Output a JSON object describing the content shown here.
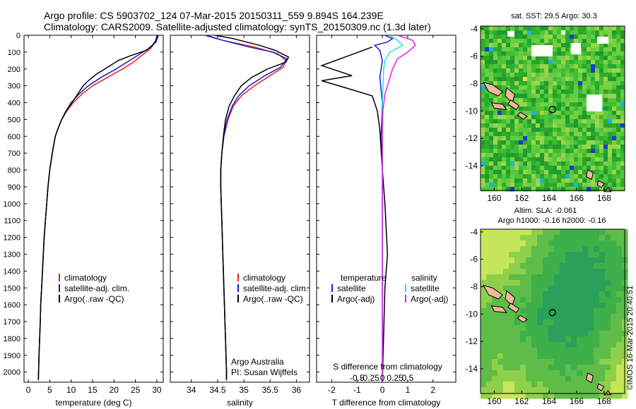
{
  "header": {
    "line1": "Argo profile: CS 5903702_124 07-Mar-2015 20150311_559 9.894S 164.239E",
    "line2": "Climatology: CARS2009. Satellite-adjusted climatology: synTS_20150309.nc (1.3d later)"
  },
  "credit": "©IMOS 16-Mar-2015 20:40:51",
  "colors": {
    "climatology": "#e8201e",
    "satellite": "#1a1acc",
    "argo": "#000000",
    "sat_salinity": "#22e0e8",
    "argo_adj_salinity": "#e020e0"
  },
  "chart_data": [
    {
      "id": "temperature-profile",
      "type": "line",
      "xlabel": "temperature (deg C)",
      "ylabel": "",
      "xlim": [
        -1,
        31.5
      ],
      "ylim": [
        2060,
        0
      ],
      "xticks": [
        0,
        5,
        10,
        15,
        20,
        25,
        30
      ],
      "yticks": [
        0,
        100,
        200,
        300,
        400,
        500,
        600,
        700,
        800,
        900,
        1000,
        1100,
        1200,
        1300,
        1400,
        1500,
        1600,
        1700,
        1800,
        1900,
        2000
      ],
      "legend": [
        "climatology",
        "satellite-adj. clim.",
        "Argo(..raw -QC)"
      ],
      "series": [
        {
          "name": "climatology",
          "color": "#e8201e",
          "points": [
            [
              30.2,
              0
            ],
            [
              29.6,
              40
            ],
            [
              28.5,
              80
            ],
            [
              26.5,
              120
            ],
            [
              24.5,
              160
            ],
            [
              22,
              200
            ],
            [
              18.5,
              250
            ],
            [
              15,
              300
            ],
            [
              12.5,
              350
            ],
            [
              10.5,
              400
            ],
            [
              9,
              450
            ],
            [
              7.8,
              500
            ],
            [
              7,
              550
            ],
            [
              6.3,
              600
            ],
            [
              5.6,
              700
            ],
            [
              5,
              800
            ],
            [
              4.6,
              900
            ],
            [
              4.3,
              1000
            ],
            [
              4,
              1100
            ],
            [
              3.7,
              1200
            ],
            [
              3.5,
              1300
            ],
            [
              3.3,
              1400
            ],
            [
              3.1,
              1500
            ],
            [
              2.9,
              1600
            ],
            [
              2.8,
              1700
            ],
            [
              2.65,
              1800
            ],
            [
              2.5,
              1900
            ],
            [
              2.4,
              2000
            ],
            [
              2.35,
              2050
            ]
          ]
        },
        {
          "name": "satellite-adj. clim.",
          "color": "#1a1acc",
          "points": [
            [
              30.4,
              0
            ],
            [
              29.8,
              40
            ],
            [
              28,
              80
            ],
            [
              25.5,
              120
            ],
            [
              23,
              160
            ],
            [
              20.5,
              200
            ],
            [
              17,
              250
            ],
            [
              14,
              300
            ],
            [
              11.8,
              350
            ],
            [
              10,
              400
            ],
            [
              8.8,
              450
            ],
            [
              7.8,
              500
            ],
            [
              7,
              550
            ],
            [
              6.3,
              600
            ],
            [
              5.6,
              700
            ],
            [
              5,
              800
            ],
            [
              4.6,
              900
            ],
            [
              4.3,
              1000
            ],
            [
              4,
              1100
            ],
            [
              3.7,
              1200
            ],
            [
              3.5,
              1300
            ],
            [
              3.3,
              1400
            ],
            [
              3.1,
              1500
            ],
            [
              2.9,
              1600
            ],
            [
              2.8,
              1700
            ],
            [
              2.65,
              1800
            ],
            [
              2.5,
              1900
            ],
            [
              2.4,
              2000
            ],
            [
              2.35,
              2050
            ]
          ]
        },
        {
          "name": "Argo(..raw -QC)",
          "color": "#000000",
          "points": [
            [
              30.1,
              0
            ],
            [
              29.8,
              30
            ],
            [
              29,
              60
            ],
            [
              27.5,
              90
            ],
            [
              24,
              120
            ],
            [
              21,
              150
            ],
            [
              18.5,
              190
            ],
            [
              16,
              230
            ],
            [
              14,
              270
            ],
            [
              12.8,
              300
            ],
            [
              11.5,
              350
            ],
            [
              10.2,
              400
            ],
            [
              8.8,
              450
            ],
            [
              7.8,
              500
            ],
            [
              7,
              550
            ],
            [
              6.3,
              600
            ],
            [
              5.6,
              700
            ],
            [
              5,
              800
            ],
            [
              4.6,
              900
            ],
            [
              4.3,
              1000
            ],
            [
              4,
              1100
            ],
            [
              3.7,
              1200
            ],
            [
              3.5,
              1300
            ],
            [
              3.3,
              1400
            ],
            [
              3.1,
              1500
            ],
            [
              2.9,
              1600
            ],
            [
              2.8,
              1700
            ],
            [
              2.65,
              1800
            ],
            [
              2.5,
              1900
            ],
            [
              2.4,
              2000
            ],
            [
              2.35,
              2040
            ]
          ]
        }
      ]
    },
    {
      "id": "salinity-profile",
      "type": "line",
      "xlabel": "salinity",
      "ylabel": "",
      "xlim": [
        33.6,
        36.25
      ],
      "ylim": [
        2060,
        0
      ],
      "xticks": [
        34,
        34.5,
        35,
        35.5,
        36
      ],
      "xtick_labels": [
        "34",
        "34.5",
        "35",
        "35.5",
        "36"
      ],
      "legend": [
        "climatology",
        "satellite-adj. clim.",
        "Argo(..raw -QC)"
      ],
      "annotation": [
        "Argo Australia",
        "PI: Susan Wijffels"
      ],
      "series": [
        {
          "name": "climatology",
          "color": "#e8201e",
          "points": [
            [
              34.25,
              0
            ],
            [
              34.6,
              30
            ],
            [
              35.2,
              70
            ],
            [
              35.65,
              110
            ],
            [
              35.8,
              150
            ],
            [
              35.75,
              190
            ],
            [
              35.5,
              240
            ],
            [
              35.2,
              300
            ],
            [
              34.95,
              360
            ],
            [
              34.8,
              420
            ],
            [
              34.7,
              500
            ],
            [
              34.62,
              600
            ],
            [
              34.58,
              700
            ],
            [
              34.56,
              800
            ],
            [
              34.56,
              900
            ],
            [
              34.57,
              1000
            ],
            [
              34.58,
              1100
            ],
            [
              34.59,
              1200
            ],
            [
              34.6,
              1300
            ],
            [
              34.61,
              1400
            ],
            [
              34.62,
              1500
            ],
            [
              34.63,
              1600
            ],
            [
              34.64,
              1700
            ],
            [
              34.65,
              1800
            ],
            [
              34.66,
              1900
            ],
            [
              34.67,
              2000
            ],
            [
              34.67,
              2050
            ]
          ]
        },
        {
          "name": "satellite-adj. clim.",
          "color": "#1a1acc",
          "points": [
            [
              34.28,
              0
            ],
            [
              34.6,
              30
            ],
            [
              35.1,
              70
            ],
            [
              35.55,
              100
            ],
            [
              35.82,
              140
            ],
            [
              35.7,
              190
            ],
            [
              35.4,
              240
            ],
            [
              35.1,
              300
            ],
            [
              34.9,
              360
            ],
            [
              34.78,
              420
            ],
            [
              34.68,
              500
            ],
            [
              34.62,
              600
            ],
            [
              34.58,
              700
            ],
            [
              34.56,
              800
            ],
            [
              34.56,
              900
            ],
            [
              34.57,
              1000
            ],
            [
              34.58,
              1100
            ],
            [
              34.59,
              1200
            ],
            [
              34.6,
              1300
            ],
            [
              34.61,
              1400
            ],
            [
              34.62,
              1500
            ],
            [
              34.63,
              1600
            ],
            [
              34.64,
              1700
            ],
            [
              34.65,
              1800
            ],
            [
              34.66,
              1900
            ],
            [
              34.67,
              2000
            ],
            [
              34.67,
              2050
            ]
          ]
        },
        {
          "name": "Argo(..raw -QC)",
          "color": "#000000",
          "points": [
            [
              34.45,
              0
            ],
            [
              34.8,
              20
            ],
            [
              35.3,
              60
            ],
            [
              35.6,
              90
            ],
            [
              35.85,
              130
            ],
            [
              35.8,
              160
            ],
            [
              35.45,
              200
            ],
            [
              35.15,
              250
            ],
            [
              34.95,
              300
            ],
            [
              34.82,
              360
            ],
            [
              34.72,
              420
            ],
            [
              34.65,
              500
            ],
            [
              34.61,
              600
            ],
            [
              34.58,
              700
            ],
            [
              34.56,
              800
            ],
            [
              34.56,
              900
            ],
            [
              34.57,
              1000
            ],
            [
              34.58,
              1100
            ],
            [
              34.59,
              1200
            ],
            [
              34.6,
              1300
            ],
            [
              34.61,
              1400
            ],
            [
              34.62,
              1500
            ],
            [
              34.63,
              1600
            ],
            [
              34.64,
              1700
            ],
            [
              34.65,
              1800
            ],
            [
              34.66,
              1900
            ],
            [
              34.67,
              2000
            ],
            [
              34.67,
              2040
            ]
          ]
        }
      ]
    },
    {
      "id": "difference-profile",
      "type": "line",
      "xlabel": "T difference from climatology",
      "xlabel_top": "S difference from climatology",
      "xlim": [
        -2.6,
        2.9
      ],
      "ylim": [
        2060,
        0
      ],
      "xticks": [
        -2,
        -1,
        0,
        1,
        2
      ],
      "xticks_top": [
        -0.5,
        -0.25,
        0,
        0.25,
        0.5
      ],
      "legend_groups": [
        {
          "title": "temperature",
          "items": [
            "satellite",
            "Argo(-adj)"
          ]
        },
        {
          "title": "salinity",
          "items": [
            "satellite",
            "Argo(-adj)"
          ]
        }
      ],
      "series": [
        {
          "name": "temperature satellite",
          "color": "#1a1acc",
          "points": [
            [
              0.1,
              0
            ],
            [
              0.4,
              20
            ],
            [
              0.2,
              40
            ],
            [
              -0.3,
              60
            ],
            [
              -0.1,
              90
            ],
            [
              0,
              150
            ],
            [
              -0.1,
              250
            ],
            [
              0,
              400
            ],
            [
              -0.05,
              600
            ],
            [
              0,
              800
            ],
            [
              0,
              1000
            ],
            [
              0,
              1200
            ],
            [
              0,
              1500
            ],
            [
              0,
              2050
            ]
          ]
        },
        {
          "name": "temperature Argo(-adj)",
          "color": "#000000",
          "points": [
            [
              -0.4,
              70
            ],
            [
              -2.4,
              180
            ],
            [
              -1.2,
              240
            ],
            [
              -2.4,
              270
            ],
            [
              -1.5,
              310
            ],
            [
              -0.4,
              360
            ],
            [
              -0.2,
              450
            ],
            [
              -0.1,
              560
            ],
            [
              0,
              800
            ],
            [
              0.1,
              1000
            ],
            [
              0.2,
              1300
            ],
            [
              0.1,
              1500
            ],
            [
              0,
              2050
            ]
          ]
        },
        {
          "name": "salinity satellite",
          "color": "#22e0e8",
          "points": [
            [
              0.3,
              0
            ],
            [
              0.6,
              30
            ],
            [
              0.8,
              60
            ],
            [
              0.3,
              100
            ],
            [
              0.1,
              150
            ],
            [
              0.05,
              200
            ],
            [
              0,
              400
            ],
            [
              0,
              1000
            ],
            [
              0,
              2050
            ]
          ]
        },
        {
          "name": "salinity Argo(-adj)",
          "color": "#e020e0",
          "points": [
            [
              0.6,
              0
            ],
            [
              1.2,
              30
            ],
            [
              1.3,
              60
            ],
            [
              1,
              100
            ],
            [
              0.6,
              140
            ],
            [
              0.4,
              200
            ],
            [
              0.3,
              250
            ],
            [
              0.1,
              350
            ],
            [
              0.02,
              450
            ],
            [
              0,
              600
            ],
            [
              0,
              2050
            ]
          ]
        }
      ]
    },
    {
      "id": "sst-map",
      "type": "heatmap",
      "title": "sat. SST: 29.5 Argo: 30.3",
      "xlim": [
        159,
        169.5
      ],
      "ylim": [
        -15.8,
        -3.8
      ],
      "xticks": [
        160,
        162,
        164,
        166,
        168
      ],
      "yticks": [
        -14,
        -12,
        -10,
        -8,
        -6,
        -4
      ],
      "argo_location": [
        164.239,
        -9.894
      ]
    },
    {
      "id": "sla-map",
      "type": "heatmap",
      "title": "Altim. SLA: -0.061",
      "subtitle": "Argo h1000: -0.16 h2000: -0.16",
      "xlim": [
        159,
        169.5
      ],
      "ylim": [
        -15.8,
        -3.8
      ],
      "xticks": [
        160,
        162,
        164,
        166,
        168
      ],
      "yticks": [
        -14,
        -12,
        -10,
        -8,
        -6,
        -4
      ],
      "argo_location": [
        164.239,
        -9.894
      ]
    }
  ]
}
